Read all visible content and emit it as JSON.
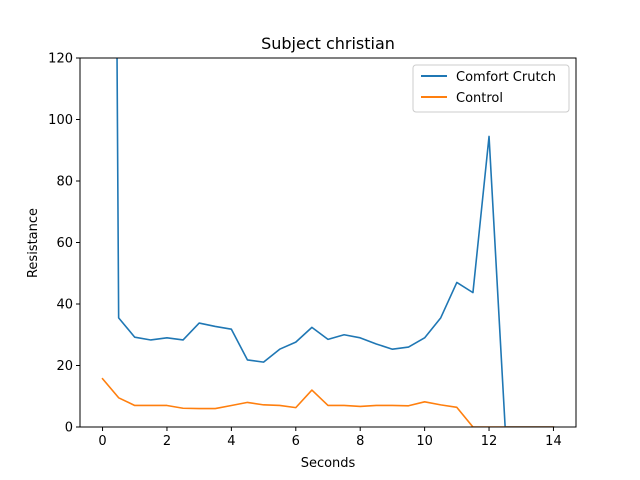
{
  "chart_data": {
    "type": "line",
    "title": "Subject christian",
    "xlabel": "Seconds",
    "ylabel": "Resistance",
    "xlim": [
      -0.7,
      14.7
    ],
    "ylim": [
      0,
      120
    ],
    "xticks": [
      0,
      2,
      4,
      6,
      8,
      10,
      12,
      14
    ],
    "yticks": [
      0,
      20,
      40,
      60,
      80,
      100,
      120
    ],
    "grid": false,
    "legend": "top-right",
    "series": [
      {
        "name": "Comfort Crutch",
        "color": "#1f77b4",
        "x": [
          0.45,
          0.5,
          1.0,
          1.5,
          2.0,
          2.5,
          3.0,
          3.5,
          4.0,
          4.5,
          5.0,
          5.5,
          6.0,
          6.5,
          7.0,
          7.5,
          8.0,
          8.5,
          9.0,
          9.5,
          10.0,
          10.5,
          11.0,
          11.5,
          12.0,
          12.5,
          13.0,
          13.5,
          14.0
        ],
        "values": [
          120,
          35.5,
          29.2,
          28.3,
          29.0,
          28.3,
          33.8,
          32.7,
          31.8,
          21.8,
          21.1,
          25.3,
          27.6,
          32.4,
          28.5,
          30.0,
          29.0,
          27.0,
          25.3,
          26.0,
          29.0,
          35.5,
          47.0,
          43.7,
          94.5,
          0,
          0,
          0,
          0
        ]
      },
      {
        "name": "Control",
        "color": "#ff7f0e",
        "x": [
          0,
          0.5,
          1.0,
          1.5,
          2.0,
          2.5,
          3.0,
          3.5,
          4.0,
          4.5,
          5.0,
          5.5,
          6.0,
          6.5,
          7.0,
          7.5,
          8.0,
          8.5,
          9.0,
          9.5,
          10.0,
          10.5,
          11.0,
          11.5,
          12.0,
          12.5,
          13.0,
          13.5,
          14.0
        ],
        "values": [
          15.7,
          9.5,
          7.0,
          7.0,
          7.0,
          6.1,
          6.0,
          6.0,
          7.0,
          8.0,
          7.2,
          7.0,
          6.3,
          12.0,
          7.0,
          7.0,
          6.7,
          7.0,
          7.0,
          6.9,
          8.2,
          7.2,
          6.4,
          0,
          0,
          0,
          0,
          0,
          0
        ]
      }
    ]
  }
}
